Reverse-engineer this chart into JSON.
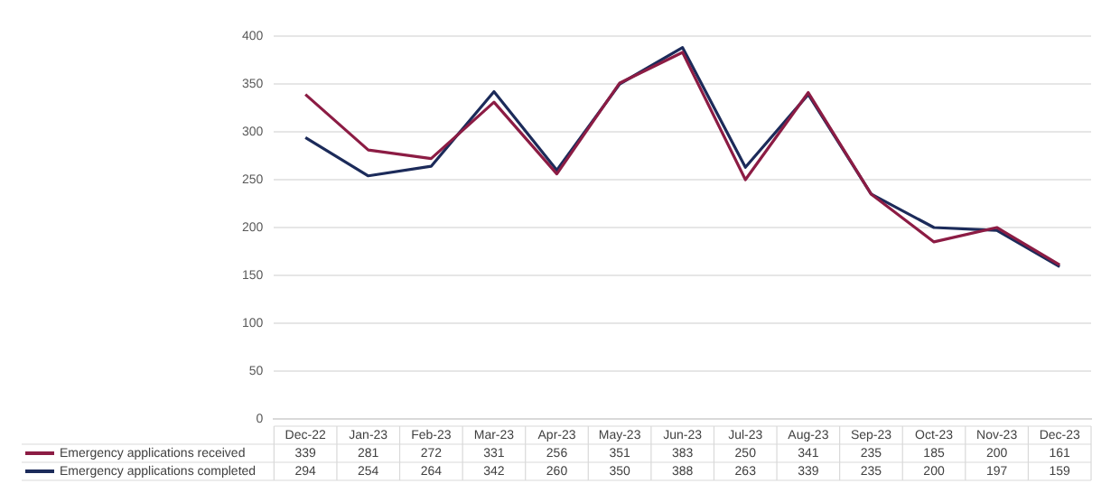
{
  "chart_data": {
    "type": "line",
    "categories": [
      "Dec-22",
      "Jan-23",
      "Feb-23",
      "Mar-23",
      "Apr-23",
      "May-23",
      "Jun-23",
      "Jul-23",
      "Aug-23",
      "Sep-23",
      "Oct-23",
      "Nov-23",
      "Dec-23"
    ],
    "series": [
      {
        "name": "Emergency applications received",
        "color": "#8c1c44",
        "values": [
          339,
          281,
          272,
          331,
          256,
          351,
          383,
          250,
          341,
          235,
          185,
          200,
          161
        ]
      },
      {
        "name": "Emergency applications completed",
        "color": "#1c2b5a",
        "values": [
          294,
          254,
          264,
          342,
          260,
          350,
          388,
          263,
          339,
          235,
          200,
          197,
          159
        ]
      }
    ],
    "ylim": [
      0,
      400
    ],
    "yticks": [
      0,
      50,
      100,
      150,
      200,
      250,
      300,
      350,
      400
    ],
    "grid": "y",
    "legend": "bottom",
    "data_labels": true,
    "marker": "none",
    "line_style": "solid"
  }
}
